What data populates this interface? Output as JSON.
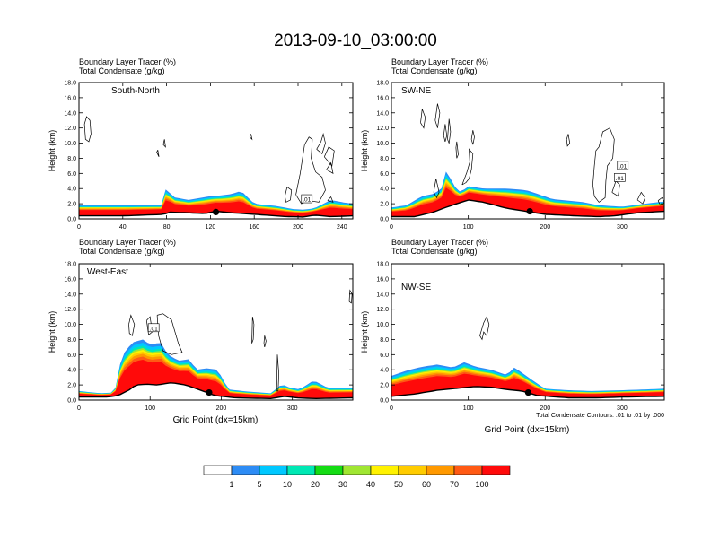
{
  "figure": {
    "title": "2013-09-10_03:00:00",
    "contour_note": "Total Condensate Contours: .01 to .01 by .000"
  },
  "colorbar": {
    "colors": [
      "#ffffff",
      "#2d8cf5",
      "#00c8ff",
      "#00e8b4",
      "#14dc14",
      "#a0e632",
      "#fff200",
      "#ffcc00",
      "#ff9900",
      "#ff5a14",
      "#ff0a0a"
    ],
    "labels": [
      "1",
      "5",
      "10",
      "20",
      "30",
      "40",
      "50",
      "60",
      "70",
      "100"
    ]
  },
  "chart_data": [
    {
      "type": "heatmap",
      "name": "South-North",
      "header_line1": "Boundary Layer Tracer   (%)",
      "header_line2": "Total Condensate   (g/kg)",
      "ylabel": "Height (km)",
      "xlabel": "",
      "xlim": [
        0,
        250
      ],
      "ylim": [
        0,
        18
      ],
      "xticks": [
        "0",
        "40",
        "80",
        "120",
        "160",
        "200",
        "240"
      ],
      "yticks": [
        "0.0",
        "2.0",
        "4.0",
        "6.0",
        "8.0",
        "10.0",
        "12.0",
        "14.0",
        "16.0",
        "18.0"
      ],
      "terrain": [
        [
          0,
          0.4
        ],
        [
          40,
          0.4
        ],
        [
          78,
          0.6
        ],
        [
          82,
          0.9
        ],
        [
          100,
          0.8
        ],
        [
          115,
          0.7
        ],
        [
          125,
          1.0
        ],
        [
          140,
          0.8
        ],
        [
          160,
          0.6
        ],
        [
          190,
          0.3
        ],
        [
          205,
          0.25
        ],
        [
          215,
          0.5
        ],
        [
          230,
          0.3
        ],
        [
          250,
          0.4
        ]
      ],
      "tracer_top": [
        [
          0,
          1.8
        ],
        [
          40,
          1.8
        ],
        [
          75,
          1.8
        ],
        [
          80,
          4.3
        ],
        [
          85,
          2.9
        ],
        [
          100,
          2.5
        ],
        [
          112,
          2.8
        ],
        [
          120,
          3.0
        ],
        [
          130,
          3.1
        ],
        [
          140,
          3.3
        ],
        [
          148,
          3.7
        ],
        [
          160,
          2.0
        ],
        [
          180,
          1.7
        ],
        [
          195,
          1.3
        ],
        [
          205,
          1.2
        ],
        [
          215,
          1.4
        ],
        [
          230,
          2.5
        ],
        [
          240,
          2.2
        ],
        [
          250,
          2.0
        ]
      ],
      "contour_level": "0.01",
      "contour_label": ".01",
      "marker": [
        125,
        0.9
      ]
    },
    {
      "type": "heatmap",
      "name": "SW-NE",
      "header_line1": "Boundary Layer Tracer   (%)",
      "header_line2": "Total Condensate   (g/kg)",
      "ylabel": "Height (km)",
      "xlabel": "",
      "xlim": [
        0,
        355
      ],
      "ylim": [
        0,
        18
      ],
      "xticks": [
        "0",
        "100",
        "200",
        "300"
      ],
      "yticks": [
        "0.0",
        "2.0",
        "4.0",
        "6.0",
        "8.0",
        "10.0",
        "12.0",
        "14.0",
        "16.0",
        "18.0"
      ],
      "terrain": [
        [
          0,
          0.3
        ],
        [
          30,
          0.3
        ],
        [
          55,
          0.9
        ],
        [
          70,
          1.5
        ],
        [
          85,
          2.0
        ],
        [
          100,
          2.5
        ],
        [
          120,
          2.2
        ],
        [
          150,
          1.4
        ],
        [
          175,
          1.0
        ],
        [
          200,
          0.6
        ],
        [
          240,
          0.4
        ],
        [
          270,
          0.3
        ],
        [
          290,
          0.4
        ],
        [
          320,
          0.8
        ],
        [
          355,
          1.0
        ]
      ],
      "tracer_top": [
        [
          0,
          1.5
        ],
        [
          20,
          1.8
        ],
        [
          40,
          3.0
        ],
        [
          55,
          3.3
        ],
        [
          65,
          4.0
        ],
        [
          72,
          6.6
        ],
        [
          80,
          4.5
        ],
        [
          90,
          3.5
        ],
        [
          100,
          4.3
        ],
        [
          120,
          4.0
        ],
        [
          150,
          4.0
        ],
        [
          175,
          3.8
        ],
        [
          190,
          3.3
        ],
        [
          210,
          2.6
        ],
        [
          230,
          2.4
        ],
        [
          250,
          2.2
        ],
        [
          270,
          1.8
        ],
        [
          300,
          1.6
        ],
        [
          330,
          2.0
        ],
        [
          355,
          2.3
        ]
      ],
      "contour_level": "0.01",
      "contour_label": ".01",
      "marker": [
        180,
        1.0
      ]
    },
    {
      "type": "heatmap",
      "name": "West-East",
      "header_line1": "Boundary Layer Tracer   (%)",
      "header_line2": "Total Condensate   (g/kg)",
      "ylabel": "Height (km)",
      "xlabel": "Grid Point (dx=15km)",
      "xlim": [
        0,
        385
      ],
      "ylim": [
        0,
        18
      ],
      "xticks": [
        "0",
        "100",
        "200",
        "300"
      ],
      "yticks": [
        "0.0",
        "2.0",
        "4.0",
        "6.0",
        "8.0",
        "10.0",
        "12.0",
        "14.0",
        "16.0",
        "18.0"
      ],
      "terrain": [
        [
          0,
          0.4
        ],
        [
          40,
          0.4
        ],
        [
          55,
          0.6
        ],
        [
          70,
          1.3
        ],
        [
          80,
          2.0
        ],
        [
          95,
          2.1
        ],
        [
          110,
          2.0
        ],
        [
          130,
          2.3
        ],
        [
          150,
          2.0
        ],
        [
          165,
          1.5
        ],
        [
          180,
          1.0
        ],
        [
          190,
          0.6
        ],
        [
          220,
          0.3
        ],
        [
          270,
          0.2
        ],
        [
          290,
          0.5
        ],
        [
          305,
          0.3
        ],
        [
          330,
          0.2
        ],
        [
          385,
          0.3
        ]
      ],
      "tracer_top": [
        [
          0,
          1.2
        ],
        [
          30,
          0.9
        ],
        [
          50,
          1.0
        ],
        [
          60,
          5.8
        ],
        [
          75,
          7.6
        ],
        [
          90,
          8.0
        ],
        [
          100,
          7.3
        ],
        [
          115,
          7.6
        ],
        [
          125,
          6.0
        ],
        [
          140,
          5.2
        ],
        [
          155,
          5.4
        ],
        [
          165,
          4.0
        ],
        [
          180,
          4.2
        ],
        [
          195,
          4.0
        ],
        [
          210,
          1.4
        ],
        [
          240,
          1.1
        ],
        [
          270,
          0.9
        ],
        [
          285,
          2.1
        ],
        [
          295,
          1.7
        ],
        [
          310,
          1.4
        ],
        [
          330,
          2.6
        ],
        [
          350,
          1.6
        ],
        [
          385,
          1.6
        ]
      ],
      "contour_level": "0.01",
      "contour_label": ".01",
      "marker": [
        183,
        1.0
      ]
    },
    {
      "type": "heatmap",
      "name": "NW-SE",
      "header_line1": "Boundary Layer Tracer   (%)",
      "header_line2": "Total Condensate   (g/kg)",
      "ylabel": "Height (km)",
      "xlabel": "Grid Point (dx=15km)",
      "xlim": [
        0,
        355
      ],
      "ylim": [
        0,
        18
      ],
      "xticks": [
        "0",
        "100",
        "200",
        "300"
      ],
      "yticks": [
        "0.0",
        "2.0",
        "4.0",
        "6.0",
        "8.0",
        "10.0",
        "12.0",
        "14.0",
        "16.0",
        "18.0"
      ],
      "terrain": [
        [
          0,
          0.5
        ],
        [
          30,
          0.8
        ],
        [
          60,
          1.3
        ],
        [
          90,
          1.6
        ],
        [
          110,
          1.8
        ],
        [
          130,
          1.7
        ],
        [
          150,
          1.4
        ],
        [
          170,
          1.2
        ],
        [
          190,
          0.6
        ],
        [
          230,
          0.3
        ],
        [
          270,
          0.3
        ],
        [
          300,
          0.4
        ],
        [
          355,
          0.5
        ]
      ],
      "tracer_top": [
        [
          0,
          3.2
        ],
        [
          20,
          3.9
        ],
        [
          40,
          4.4
        ],
        [
          60,
          4.7
        ],
        [
          80,
          4.3
        ],
        [
          95,
          5.0
        ],
        [
          110,
          4.4
        ],
        [
          130,
          4.0
        ],
        [
          150,
          3.3
        ],
        [
          160,
          4.3
        ],
        [
          170,
          3.6
        ],
        [
          185,
          2.5
        ],
        [
          200,
          1.5
        ],
        [
          230,
          1.3
        ],
        [
          260,
          1.2
        ],
        [
          300,
          1.3
        ],
        [
          330,
          1.4
        ],
        [
          355,
          1.5
        ]
      ],
      "contour_level": "0.01",
      "contour_label": "",
      "marker": [
        178,
        1.0
      ]
    }
  ]
}
